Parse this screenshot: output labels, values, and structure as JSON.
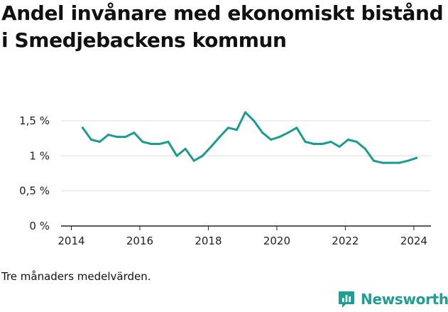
{
  "header": {
    "title": "Andel invånare med ekonomiskt bistånd i Smedjebackens kommun"
  },
  "footer": {
    "note": "Tre månaders medelvärden.",
    "brand": "Newsworthy",
    "brand_icon": "bar-chart-logo-icon"
  },
  "colors": {
    "line": "#1a9c8e",
    "grid": "#dddddd",
    "brand": "#1f9e93"
  },
  "chart_data": {
    "type": "line",
    "title": "Andel invånare med ekonomiskt bistånd i Smedjebackens kommun",
    "xlabel": "",
    "ylabel": "",
    "xlim": [
      2013.7,
      2024.5
    ],
    "ylim": [
      0,
      1.6
    ],
    "x_ticks": [
      2014,
      2016,
      2018,
      2020,
      2022,
      2024
    ],
    "x_tick_labels": [
      "2014",
      "2016",
      "2018",
      "2020",
      "2022",
      "2024"
    ],
    "y_ticks": [
      0,
      0.5,
      1,
      1.5
    ],
    "y_tick_labels": [
      "0 %",
      "0,5 %",
      "1 %",
      "1,5 %"
    ],
    "grid": true,
    "series": [
      {
        "x": [
          2014.33,
          2014.58,
          2014.83,
          2015.08,
          2015.33,
          2015.58,
          2015.83,
          2016.08,
          2016.33,
          2016.58,
          2016.83,
          2017.08,
          2017.33,
          2017.58,
          2017.83,
          2018.08,
          2018.33,
          2018.58,
          2018.83,
          2019.08,
          2019.33,
          2019.58,
          2019.83,
          2020.08,
          2020.33,
          2020.58,
          2020.83,
          2021.08,
          2021.33,
          2021.58,
          2021.83,
          2022.08,
          2022.33,
          2022.58,
          2022.83,
          2023.08,
          2023.33,
          2023.58,
          2023.83,
          2024.08
        ],
        "values": [
          1.4,
          1.23,
          1.2,
          1.3,
          1.27,
          1.27,
          1.33,
          1.2,
          1.17,
          1.17,
          1.2,
          1.0,
          1.1,
          0.93,
          1.0,
          1.13,
          1.27,
          1.4,
          1.37,
          1.62,
          1.5,
          1.33,
          1.23,
          1.27,
          1.33,
          1.4,
          1.2,
          1.17,
          1.17,
          1.2,
          1.13,
          1.23,
          1.2,
          1.1,
          0.93,
          0.9,
          0.9,
          0.9,
          0.93,
          0.97
        ]
      }
    ]
  }
}
